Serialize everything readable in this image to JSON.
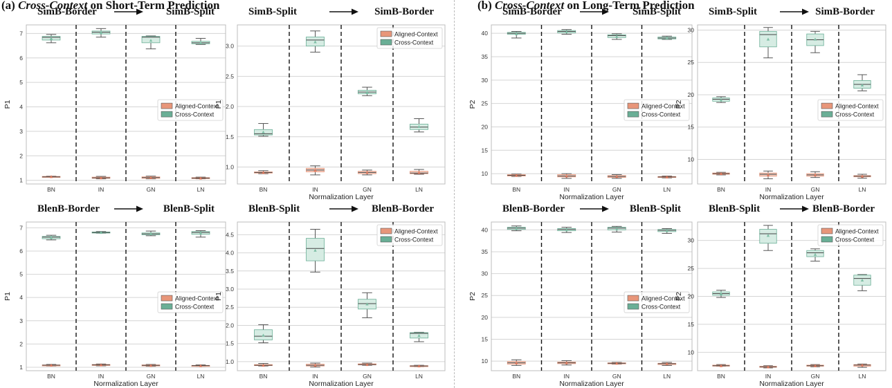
{
  "sections": {
    "a": {
      "prefix": "(a) ",
      "em": "Cross-Context",
      "suffix": " on Short-Term Prediction"
    },
    "b": {
      "prefix": "(b) ",
      "em": "Cross-Context",
      "suffix": " on Long-Term Prediction"
    }
  },
  "colors": {
    "aligned": "#e8967a",
    "cross": "#6aaf96",
    "cross_box": "#d6ece3",
    "aligned_box": "#f3cfc2",
    "grid": "#d4d4d4"
  },
  "chart_data": [
    {
      "type": "box",
      "id": "a1",
      "from": "SimB-Border",
      "to": "SimB-Split",
      "ylabel": "P1",
      "xlabel": "",
      "categories": [
        "BN",
        "IN",
        "GN",
        "LN"
      ],
      "yticks": [
        1,
        2,
        3,
        4,
        5,
        6,
        7
      ],
      "ylim": [
        0.85,
        7.35
      ],
      "legend": [
        "Aligned-Context",
        "Cross-Context"
      ],
      "legend_position": "right-middle",
      "series": [
        {
          "name": "Aligned-Context",
          "boxes": [
            {
              "lo": 1.13,
              "q1": 1.13,
              "med": 1.14,
              "q3": 1.16,
              "hi": 1.17,
              "mean": 1.15
            },
            {
              "lo": 1.06,
              "q1": 1.08,
              "med": 1.1,
              "q3": 1.13,
              "hi": 1.16,
              "mean": 1.1
            },
            {
              "lo": 1.06,
              "q1": 1.08,
              "med": 1.11,
              "q3": 1.14,
              "hi": 1.17,
              "mean": 1.11
            },
            {
              "lo": 1.06,
              "q1": 1.07,
              "med": 1.09,
              "q3": 1.11,
              "hi": 1.13,
              "mean": 1.09
            }
          ]
        },
        {
          "name": "Cross-Context",
          "boxes": [
            {
              "lo": 6.62,
              "q1": 6.73,
              "med": 6.84,
              "q3": 6.88,
              "hi": 6.96,
              "mean": 6.8
            },
            {
              "lo": 6.85,
              "q1": 6.98,
              "med": 7.05,
              "q3": 7.1,
              "hi": 7.2,
              "mean": 7.05
            },
            {
              "lo": 6.37,
              "q1": 6.62,
              "med": 6.85,
              "q3": 6.88,
              "hi": 6.9,
              "mean": 6.72
            },
            {
              "lo": 6.55,
              "q1": 6.58,
              "med": 6.62,
              "q3": 6.68,
              "hi": 6.8,
              "mean": 6.62
            }
          ]
        }
      ]
    },
    {
      "type": "box",
      "id": "a2",
      "from": "SimB-Split",
      "to": "SimB-Border",
      "ylabel": "P1",
      "xlabel": "Normalization Layer",
      "categories": [
        "BN",
        "IN",
        "GN",
        "LN"
      ],
      "yticks": [
        1.0,
        1.5,
        2.0,
        2.5,
        3.0
      ],
      "ylim": [
        0.72,
        3.35
      ],
      "legend": [
        "Aligned-Context",
        "Cross-Context"
      ],
      "legend_position": "top-right",
      "series": [
        {
          "name": "Aligned-Context",
          "boxes": [
            {
              "lo": 0.89,
              "q1": 0.9,
              "med": 0.91,
              "q3": 0.92,
              "hi": 0.94,
              "mean": 0.91
            },
            {
              "lo": 0.87,
              "q1": 0.92,
              "med": 0.95,
              "q3": 0.98,
              "hi": 1.02,
              "mean": 0.95
            },
            {
              "lo": 0.87,
              "q1": 0.89,
              "med": 0.91,
              "q3": 0.93,
              "hi": 0.95,
              "mean": 0.91
            },
            {
              "lo": 0.88,
              "q1": 0.89,
              "med": 0.9,
              "q3": 0.93,
              "hi": 0.96,
              "mean": 0.91
            }
          ]
        },
        {
          "name": "Cross-Context",
          "boxes": [
            {
              "lo": 1.51,
              "q1": 1.53,
              "med": 1.55,
              "q3": 1.62,
              "hi": 1.72,
              "mean": 1.58
            },
            {
              "lo": 2.9,
              "q1": 3.0,
              "med": 3.1,
              "q3": 3.15,
              "hi": 3.25,
              "mean": 3.07
            },
            {
              "lo": 2.18,
              "q1": 2.21,
              "med": 2.24,
              "q3": 2.27,
              "hi": 2.32,
              "mean": 2.24
            },
            {
              "lo": 1.58,
              "q1": 1.62,
              "med": 1.66,
              "q3": 1.71,
              "hi": 1.8,
              "mean": 1.67
            }
          ]
        }
      ]
    },
    {
      "type": "box",
      "id": "b1",
      "from": "SimB-Border",
      "to": "SimB-Split",
      "ylabel": "P2",
      "xlabel": "Normalization Layer",
      "categories": [
        "BN",
        "IN",
        "GN",
        "LN"
      ],
      "yticks": [
        10,
        15,
        20,
        25,
        30,
        35,
        40
      ],
      "ylim": [
        7.8,
        41.8
      ],
      "legend": [
        "Aligned-Context",
        "Cross-Context"
      ],
      "legend_position": "right-middle",
      "series": [
        {
          "name": "Aligned-Context",
          "boxes": [
            {
              "lo": 9.4,
              "q1": 9.5,
              "med": 9.65,
              "q3": 9.8,
              "hi": 9.9,
              "mean": 9.65
            },
            {
              "lo": 9.0,
              "q1": 9.3,
              "med": 9.5,
              "q3": 9.8,
              "hi": 10.0,
              "mean": 9.5
            },
            {
              "lo": 9.0,
              "q1": 9.2,
              "med": 9.4,
              "q3": 9.6,
              "hi": 9.8,
              "mean": 9.4
            },
            {
              "lo": 9.1,
              "q1": 9.2,
              "med": 9.3,
              "q3": 9.4,
              "hi": 9.5,
              "mean": 9.3
            }
          ]
        },
        {
          "name": "Cross-Context",
          "boxes": [
            {
              "lo": 39.0,
              "q1": 39.8,
              "med": 40.0,
              "q3": 40.2,
              "hi": 40.4,
              "mean": 39.9
            },
            {
              "lo": 39.8,
              "q1": 40.1,
              "med": 40.4,
              "q3": 40.6,
              "hi": 40.8,
              "mean": 40.3
            },
            {
              "lo": 38.7,
              "q1": 39.1,
              "med": 39.5,
              "q3": 39.7,
              "hi": 39.9,
              "mean": 39.3
            },
            {
              "lo": 38.7,
              "q1": 38.8,
              "med": 39.0,
              "q3": 39.2,
              "hi": 39.4,
              "mean": 39.0
            }
          ]
        }
      ]
    },
    {
      "type": "box",
      "id": "b2",
      "from": "SimB-Split",
      "to": "SimB-Border",
      "ylabel": "P2",
      "xlabel": "Normalization Layer",
      "categories": [
        "BN",
        "IN",
        "GN",
        "LN"
      ],
      "yticks": [
        10,
        15,
        20,
        25,
        30
      ],
      "ylim": [
        6.2,
        30.8
      ],
      "legend": [
        "Aligned-Context",
        "Cross-Context"
      ],
      "legend_position": "right-middle",
      "series": [
        {
          "name": "Aligned-Context",
          "boxes": [
            {
              "lo": 7.6,
              "q1": 7.7,
              "med": 7.8,
              "q3": 7.9,
              "hi": 8.0,
              "mean": 7.8
            },
            {
              "lo": 7.0,
              "q1": 7.4,
              "med": 7.7,
              "q3": 7.9,
              "hi": 8.2,
              "mean": 7.6
            },
            {
              "lo": 7.2,
              "q1": 7.4,
              "med": 7.6,
              "q3": 7.8,
              "hi": 8.1,
              "mean": 7.6
            },
            {
              "lo": 7.1,
              "q1": 7.3,
              "med": 7.4,
              "q3": 7.5,
              "hi": 7.7,
              "mean": 7.4
            }
          ]
        },
        {
          "name": "Cross-Context",
          "boxes": [
            {
              "lo": 18.8,
              "q1": 19.0,
              "med": 19.3,
              "q3": 19.5,
              "hi": 19.7,
              "mean": 19.2
            },
            {
              "lo": 25.7,
              "q1": 27.4,
              "med": 29.3,
              "q3": 29.8,
              "hi": 30.4,
              "mean": 28.6
            },
            {
              "lo": 26.5,
              "q1": 27.6,
              "med": 28.5,
              "q3": 29.4,
              "hi": 29.8,
              "mean": 28.6
            },
            {
              "lo": 20.6,
              "q1": 21.0,
              "med": 21.6,
              "q3": 22.2,
              "hi": 23.1,
              "mean": 21.5
            }
          ]
        }
      ]
    },
    {
      "type": "box",
      "id": "a3",
      "from": "BlenB-Border",
      "to": "BlenB-Split",
      "ylabel": "P1",
      "xlabel": "Normalization Layer",
      "categories": [
        "BN",
        "IN",
        "GN",
        "LN"
      ],
      "yticks": [
        1,
        2,
        3,
        4,
        5,
        6,
        7
      ],
      "ylim": [
        0.85,
        7.25
      ],
      "legend": [
        "Aligned-Context",
        "Cross-Context"
      ],
      "legend_position": "right-middle",
      "series": [
        {
          "name": "Aligned-Context",
          "boxes": [
            {
              "lo": 1.05,
              "q1": 1.07,
              "med": 1.09,
              "q3": 1.1,
              "hi": 1.12,
              "mean": 1.09
            },
            {
              "lo": 1.06,
              "q1": 1.08,
              "med": 1.1,
              "q3": 1.12,
              "hi": 1.14,
              "mean": 1.1
            },
            {
              "lo": 1.04,
              "q1": 1.06,
              "med": 1.08,
              "q3": 1.1,
              "hi": 1.12,
              "mean": 1.08
            },
            {
              "lo": 1.04,
              "q1": 1.05,
              "med": 1.07,
              "q3": 1.08,
              "hi": 1.1,
              "mean": 1.07
            }
          ]
        },
        {
          "name": "Cross-Context",
          "boxes": [
            {
              "lo": 6.48,
              "q1": 6.53,
              "med": 6.6,
              "q3": 6.63,
              "hi": 6.68,
              "mean": 6.6
            },
            {
              "lo": 6.77,
              "q1": 6.79,
              "med": 6.8,
              "q3": 6.82,
              "hi": 6.84,
              "mean": 6.8
            },
            {
              "lo": 6.66,
              "q1": 6.7,
              "med": 6.74,
              "q3": 6.78,
              "hi": 6.86,
              "mean": 6.75
            },
            {
              "lo": 6.6,
              "q1": 6.72,
              "med": 6.8,
              "q3": 6.84,
              "hi": 6.88,
              "mean": 6.78
            }
          ]
        }
      ]
    },
    {
      "type": "box",
      "id": "a4",
      "from": "BlenB-Split",
      "to": "BlenB-Border",
      "ylabel": "P1",
      "xlabel": "Normalization Layer",
      "categories": [
        "BN",
        "IN",
        "GN",
        "LN"
      ],
      "yticks": [
        1.0,
        1.5,
        2.0,
        2.5,
        3.0,
        3.5,
        4.0,
        4.5
      ],
      "ylim": [
        0.75,
        4.85
      ],
      "legend": [
        "Aligned-Context",
        "Cross-Context"
      ],
      "legend_position": "top-right",
      "series": [
        {
          "name": "Aligned-Context",
          "boxes": [
            {
              "lo": 0.88,
              "q1": 0.89,
              "med": 0.9,
              "q3": 0.92,
              "hi": 0.95,
              "mean": 0.9
            },
            {
              "lo": 0.85,
              "q1": 0.88,
              "med": 0.9,
              "q3": 0.93,
              "hi": 0.96,
              "mean": 0.9
            },
            {
              "lo": 0.9,
              "q1": 0.91,
              "med": 0.92,
              "q3": 0.94,
              "hi": 0.96,
              "mean": 0.92
            },
            {
              "lo": 0.86,
              "q1": 0.87,
              "med": 0.88,
              "q3": 0.89,
              "hi": 0.9,
              "mean": 0.88
            }
          ]
        },
        {
          "name": "Cross-Context",
          "boxes": [
            {
              "lo": 1.52,
              "q1": 1.6,
              "med": 1.7,
              "q3": 1.88,
              "hi": 2.02,
              "mean": 1.73
            },
            {
              "lo": 3.47,
              "q1": 3.78,
              "med": 4.12,
              "q3": 4.4,
              "hi": 4.65,
              "mean": 4.07
            },
            {
              "lo": 2.21,
              "q1": 2.45,
              "med": 2.6,
              "q3": 2.72,
              "hi": 2.9,
              "mean": 2.59
            },
            {
              "lo": 1.55,
              "q1": 1.65,
              "med": 1.78,
              "q3": 1.8,
              "hi": 1.81,
              "mean": 1.72
            }
          ]
        }
      ]
    },
    {
      "type": "box",
      "id": "b3",
      "from": "BlenB-Border",
      "to": "BlenB-Split",
      "ylabel": "P2",
      "xlabel": "Normalization Layer",
      "categories": [
        "BN",
        "IN",
        "GN",
        "LN"
      ],
      "yticks": [
        10,
        15,
        20,
        25,
        30,
        35,
        40
      ],
      "ylim": [
        7.8,
        41.8
      ],
      "legend": [
        "Aligned-Context",
        "Cross-Context"
      ],
      "legend_position": "right-middle",
      "series": [
        {
          "name": "Aligned-Context",
          "boxes": [
            {
              "lo": 9.0,
              "q1": 9.3,
              "med": 9.6,
              "q3": 9.9,
              "hi": 10.3,
              "mean": 9.6
            },
            {
              "lo": 9.1,
              "q1": 9.4,
              "med": 9.6,
              "q3": 9.8,
              "hi": 10.1,
              "mean": 9.6
            },
            {
              "lo": 9.3,
              "q1": 9.4,
              "med": 9.5,
              "q3": 9.6,
              "hi": 9.7,
              "mean": 9.5
            },
            {
              "lo": 9.0,
              "q1": 9.2,
              "med": 9.4,
              "q3": 9.5,
              "hi": 9.7,
              "mean": 9.4
            }
          ]
        },
        {
          "name": "Cross-Context",
          "boxes": [
            {
              "lo": 39.8,
              "q1": 40.1,
              "med": 40.4,
              "q3": 40.6,
              "hi": 40.9,
              "mean": 40.3
            },
            {
              "lo": 39.4,
              "q1": 39.8,
              "med": 40.1,
              "q3": 40.3,
              "hi": 40.6,
              "mean": 40.0
            },
            {
              "lo": 39.5,
              "q1": 40.0,
              "med": 40.4,
              "q3": 40.6,
              "hi": 40.8,
              "mean": 40.2
            },
            {
              "lo": 39.2,
              "q1": 39.6,
              "med": 39.9,
              "q3": 40.1,
              "hi": 40.3,
              "mean": 39.8
            }
          ]
        }
      ]
    },
    {
      "type": "box",
      "id": "b4",
      "from": "BlenB-Split",
      "to": "BlenB-Border",
      "ylabel": "P2",
      "xlabel": "Normalization Layer",
      "categories": [
        "BN",
        "IN",
        "GN",
        "LN"
      ],
      "yticks": [
        10,
        15,
        20,
        25,
        30
      ],
      "ylim": [
        6.7,
        33.3
      ],
      "legend": [
        "Aligned-Context",
        "Cross-Context"
      ],
      "legend_position": "top-right",
      "series": [
        {
          "name": "Aligned-Context",
          "boxes": [
            {
              "lo": 7.5,
              "q1": 7.6,
              "med": 7.6,
              "q3": 7.7,
              "hi": 7.8,
              "mean": 7.6
            },
            {
              "lo": 7.2,
              "q1": 7.3,
              "med": 7.4,
              "q3": 7.5,
              "hi": 7.6,
              "mean": 7.4
            },
            {
              "lo": 7.4,
              "q1": 7.5,
              "med": 7.6,
              "q3": 7.7,
              "hi": 7.8,
              "mean": 7.6
            },
            {
              "lo": 7.3,
              "q1": 7.5,
              "med": 7.7,
              "q3": 7.8,
              "hi": 7.9,
              "mean": 7.7
            }
          ]
        },
        {
          "name": "Cross-Context",
          "boxes": [
            {
              "lo": 19.8,
              "q1": 20.2,
              "med": 20.5,
              "q3": 20.8,
              "hi": 21.1,
              "mean": 20.5
            },
            {
              "lo": 28.2,
              "q1": 29.5,
              "med": 31.2,
              "q3": 32.0,
              "hi": 32.7,
              "mean": 30.9
            },
            {
              "lo": 26.3,
              "q1": 27.1,
              "med": 27.8,
              "q3": 28.2,
              "hi": 28.5,
              "mean": 27.5
            },
            {
              "lo": 21.0,
              "q1": 22.0,
              "med": 23.2,
              "q3": 23.8,
              "hi": 23.9,
              "mean": 22.9
            }
          ]
        }
      ]
    }
  ]
}
